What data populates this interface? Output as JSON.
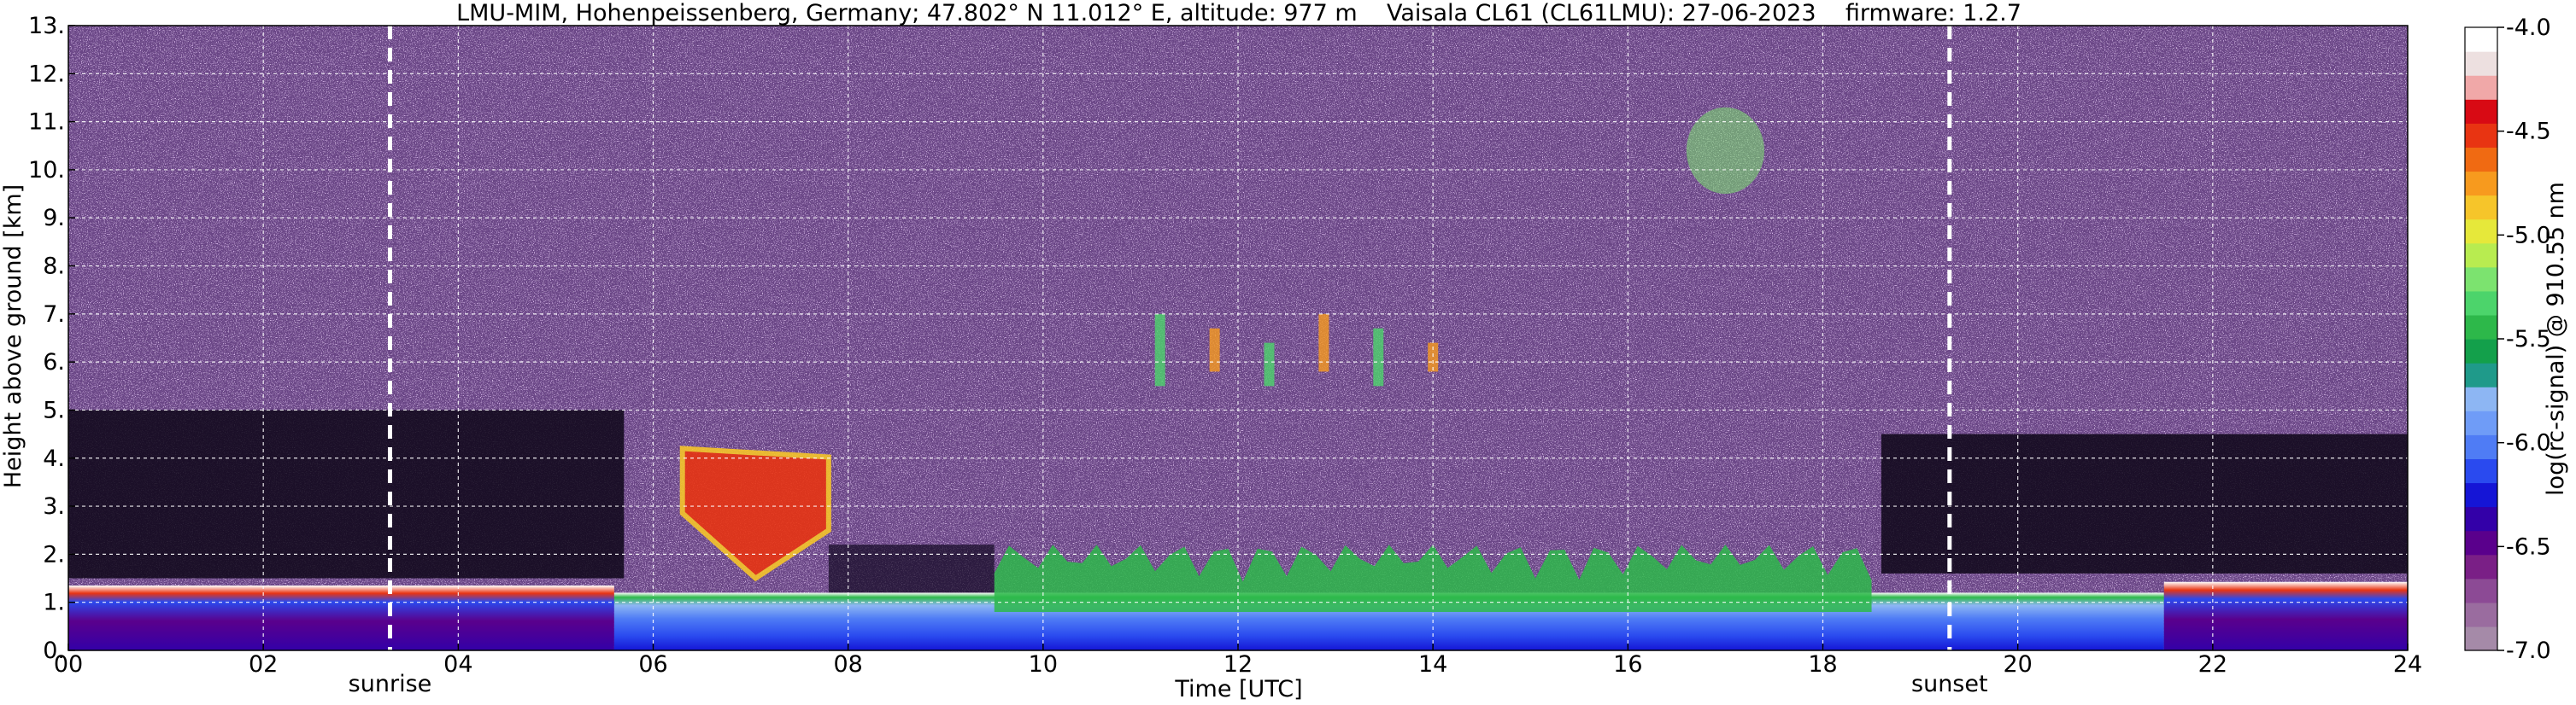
{
  "chart_data": {
    "type": "heatmap",
    "title": "LMU-MIM, Hohenpeissenberg, Germany; 47.802° N 11.012° E, altitude: 977 m    Vaisala CL61 (CL61LMU): 27-06-2023    firmware: 1.2.7",
    "xlabel": "Time [UTC]",
    "ylabel": "Height above ground [km]",
    "xlim": [
      0,
      24
    ],
    "ylim": [
      0,
      13
    ],
    "x_ticks": [
      "00",
      "02",
      "04",
      "06",
      "08",
      "10",
      "12",
      "14",
      "16",
      "18",
      "20",
      "22",
      "24"
    ],
    "x_tick_values": [
      0,
      2,
      4,
      6,
      8,
      10,
      12,
      14,
      16,
      18,
      20,
      22,
      24
    ],
    "y_ticks": [
      "0.",
      "1.",
      "2.",
      "3.",
      "4.",
      "5.",
      "6.",
      "7.",
      "8.",
      "9.",
      "10.",
      "11.",
      "12.",
      "13."
    ],
    "y_tick_values": [
      0,
      1,
      2,
      3,
      4,
      5,
      6,
      7,
      8,
      9,
      10,
      11,
      12,
      13
    ],
    "grid": true,
    "annotations": [
      {
        "label": "sunrise",
        "x": 3.3
      },
      {
        "label": "sunset",
        "x": 19.3
      }
    ],
    "colorbar": {
      "label": "log(rc-signal) @ 910.55 nm",
      "range": [
        -7.0,
        -4.0
      ],
      "ticks": [
        "-4.0",
        "-4.5",
        "-5.0",
        "-5.5",
        "-6.0",
        "-6.5",
        "-7.0"
      ],
      "tick_values": [
        -4.0,
        -4.5,
        -5.0,
        -5.5,
        -6.0,
        -6.5,
        -7.0
      ],
      "colors": [
        "#a58aa8",
        "#9a6c9f",
        "#8c4a95",
        "#7a1f86",
        "#5a008c",
        "#3300a8",
        "#1515d6",
        "#2a4aef",
        "#4f7cf5",
        "#6f9cf7",
        "#8db6f3",
        "#1f9a8a",
        "#13a04b",
        "#2db84a",
        "#4cd46b",
        "#7ce36f",
        "#b8ec50",
        "#e6e83a",
        "#f6c52a",
        "#f79a1e",
        "#f06a12",
        "#e83412",
        "#d80a14",
        "#f0a8a8",
        "#ede0e0",
        "#ffffff"
      ]
    },
    "features": [
      {
        "name": "boundary-layer",
        "x_range": [
          0,
          24
        ],
        "height_km": [
          0,
          1.5
        ]
      },
      {
        "name": "elevated-layer",
        "x_range": [
          6.3,
          7.8
        ],
        "height_km": [
          2.5,
          4.2
        ]
      },
      {
        "name": "mid-level-cloud",
        "x_range": [
          11.2,
          14.0
        ],
        "height_km": [
          5.5,
          7.0
        ]
      },
      {
        "name": "high-cloud",
        "x_range": [
          16.6,
          17.4
        ],
        "height_km": [
          9.5,
          11.3
        ]
      },
      {
        "name": "convective-boundary-layer",
        "x_range": [
          9.5,
          18.5
        ],
        "height_km": [
          0.8,
          2.2
        ]
      }
    ]
  }
}
